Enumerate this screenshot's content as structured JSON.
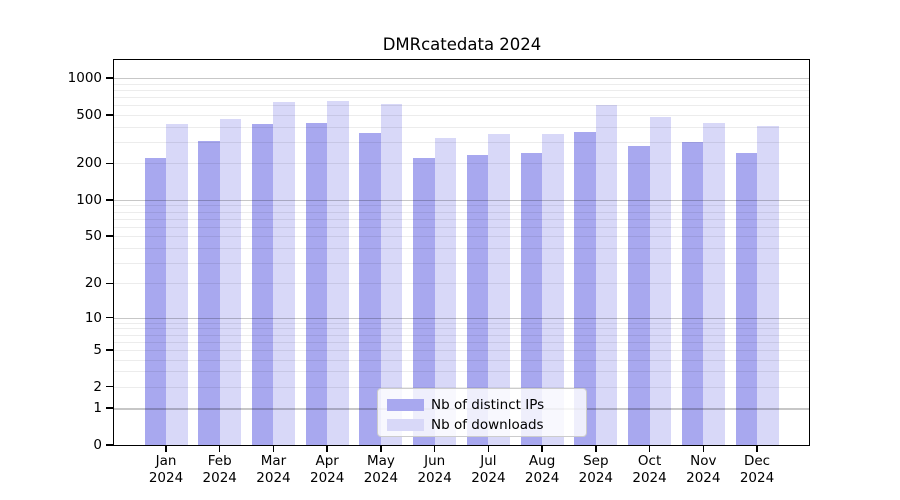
{
  "chart_data": {
    "type": "bar",
    "title": "DMRcatedata 2024",
    "categories": [
      "Jan 2024",
      "Feb 2024",
      "Mar 2024",
      "Apr 2024",
      "May 2024",
      "Jun 2024",
      "Jul 2024",
      "Aug 2024",
      "Sep 2024",
      "Oct 2024",
      "Nov 2024",
      "Dec 2024"
    ],
    "series": [
      {
        "name": "Nb of distinct IPs",
        "color": "#a8a8ef",
        "values": [
          220,
          305,
          420,
          425,
          355,
          220,
          235,
          245,
          360,
          275,
          300,
          245
        ]
      },
      {
        "name": "Nb of downloads",
        "color": "#d8d8f8",
        "values": [
          420,
          465,
          640,
          650,
          610,
          320,
          350,
          345,
          600,
          480,
          430,
          405
        ]
      }
    ],
    "xlabel": "",
    "ylabel": "",
    "yscale": "log1p",
    "yticks": [
      0,
      1,
      2,
      5,
      10,
      20,
      50,
      100,
      200,
      500,
      1000
    ],
    "ylim": [
      0,
      1400
    ],
    "grid": "on",
    "grid_major_decades": [
      1,
      10,
      100,
      1000
    ],
    "legend_position": "lower-center-inside"
  },
  "colors": {
    "background": "#ffffff",
    "axis": "#000000",
    "grid_major": "#c7c7c7",
    "grid_minor": "#ececec",
    "text": "#000000"
  }
}
